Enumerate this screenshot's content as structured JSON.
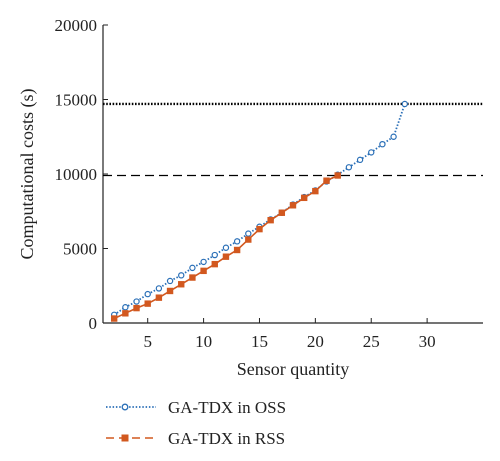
{
  "chart_data": {
    "type": "line",
    "xlabel": "Sensor quantity",
    "ylabel": "Computational costs (s)",
    "xlim": [
      1,
      35
    ],
    "ylim": [
      0,
      20000
    ],
    "x_ticks": [
      5,
      10,
      15,
      20,
      25,
      30
    ],
    "y_ticks": [
      0,
      5000,
      10000,
      15000,
      20000
    ],
    "grid": false,
    "legend_position": "bottom",
    "reference_lines": [
      {
        "y": 14700,
        "style": "dotted",
        "color": "#000000"
      },
      {
        "y": 9900,
        "style": "dashed",
        "color": "#000000"
      }
    ],
    "series": [
      {
        "name": "GA-TDX in OSS",
        "color": "#2a6fb7",
        "marker": "circle",
        "line_style": "dotted",
        "x": [
          2,
          3,
          4,
          5,
          6,
          7,
          8,
          9,
          10,
          11,
          12,
          13,
          14,
          15,
          16,
          17,
          18,
          19,
          20,
          21,
          22,
          23,
          24,
          25,
          26,
          27,
          28
        ],
        "y": [
          550,
          1060,
          1440,
          1940,
          2320,
          2820,
          3200,
          3700,
          4100,
          4560,
          5050,
          5480,
          6000,
          6460,
          6950,
          7400,
          7950,
          8450,
          8900,
          9500,
          9950,
          10450,
          10950,
          11450,
          12000,
          12500,
          14700
        ]
      },
      {
        "name": "GA-TDX in RSS",
        "color": "#d2581f",
        "marker": "square",
        "line_style": "solid",
        "x": [
          2,
          3,
          4,
          5,
          6,
          7,
          8,
          9,
          10,
          11,
          12,
          13,
          14,
          15,
          16,
          17,
          18,
          19,
          20,
          21,
          22
        ],
        "y": [
          300,
          650,
          1000,
          1300,
          1700,
          2150,
          2600,
          3050,
          3500,
          3950,
          4450,
          4900,
          5600,
          6300,
          6900,
          7400,
          7900,
          8400,
          8850,
          9550,
          9900
        ]
      }
    ]
  }
}
